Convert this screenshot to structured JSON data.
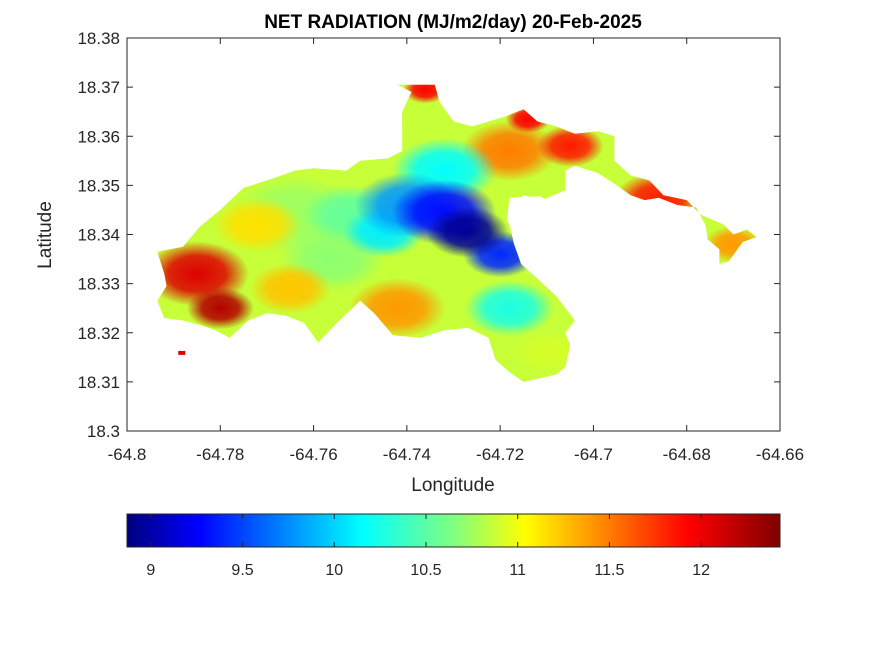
{
  "chart_data": {
    "type": "heatmap",
    "title": "NET RADIATION (MJ/m2/day) 20-Feb-2025",
    "xlabel": "Longitude",
    "ylabel": "Latitude",
    "xlim": [
      -64.8,
      -64.66
    ],
    "ylim": [
      18.3,
      18.38
    ],
    "x_ticks": [
      "-64.8",
      "-64.78",
      "-64.76",
      "-64.74",
      "-64.72",
      "-64.7",
      "-64.68",
      "-64.66"
    ],
    "y_ticks": [
      "18.3",
      "18.31",
      "18.32",
      "18.33",
      "18.34",
      "18.35",
      "18.36",
      "18.37",
      "18.38"
    ],
    "colorbar": {
      "colormap": "jet",
      "range": [
        8.87,
        12.43
      ],
      "ticks": [
        "9",
        "9.5",
        "10",
        "10.5",
        "11",
        "11.5",
        "12"
      ]
    },
    "island_outline": [
      [
        -64.7935,
        18.3365
      ],
      [
        -64.788,
        18.3375
      ],
      [
        -64.7845,
        18.3415
      ],
      [
        -64.78,
        18.345
      ],
      [
        -64.775,
        18.3495
      ],
      [
        -64.77,
        18.351
      ],
      [
        -64.764,
        18.353
      ],
      [
        -64.76,
        18.3535
      ],
      [
        -64.753,
        18.353
      ],
      [
        -64.75,
        18.355
      ],
      [
        -64.744,
        18.3555
      ],
      [
        -64.741,
        18.357
      ],
      [
        -64.741,
        18.365
      ],
      [
        -64.739,
        18.369
      ],
      [
        -64.742,
        18.3705
      ],
      [
        -64.734,
        18.3705
      ],
      [
        -64.733,
        18.367
      ],
      [
        -64.73,
        18.363
      ],
      [
        -64.726,
        18.362
      ],
      [
        -64.719,
        18.364
      ],
      [
        -64.715,
        18.3655
      ],
      [
        -64.712,
        18.363
      ],
      [
        -64.708,
        18.362
      ],
      [
        -64.704,
        18.3605
      ],
      [
        -64.699,
        18.361
      ],
      [
        -64.6955,
        18.36
      ],
      [
        -64.6955,
        18.355
      ],
      [
        -64.692,
        18.352
      ],
      [
        -64.688,
        18.351
      ],
      [
        -64.685,
        18.348
      ],
      [
        -64.68,
        18.347
      ],
      [
        -64.677,
        18.344
      ],
      [
        -64.672,
        18.342
      ],
      [
        -64.67,
        18.34
      ],
      [
        -64.667,
        18.341
      ],
      [
        -64.665,
        18.3395
      ],
      [
        -64.668,
        18.3385
      ],
      [
        -64.671,
        18.3345
      ],
      [
        -64.673,
        18.334
      ],
      [
        -64.673,
        18.337
      ],
      [
        -64.6755,
        18.339
      ],
      [
        -64.676,
        18.342
      ],
      [
        -64.678,
        18.3455
      ],
      [
        -64.682,
        18.346
      ],
      [
        -64.686,
        18.3475
      ],
      [
        -64.689,
        18.347
      ],
      [
        -64.692,
        18.348
      ],
      [
        -64.695,
        18.35
      ],
      [
        -64.699,
        18.3525
      ],
      [
        -64.704,
        18.354
      ],
      [
        -64.706,
        18.353
      ],
      [
        -64.706,
        18.349
      ],
      [
        -64.711,
        18.347
      ],
      [
        -64.715,
        18.348
      ],
      [
        -64.717,
        18.346
      ],
      [
        -64.718,
        18.342
      ],
      [
        -64.717,
        18.338
      ],
      [
        -64.7155,
        18.334
      ],
      [
        -64.712,
        18.331
      ],
      [
        -64.708,
        18.3275
      ],
      [
        -64.704,
        18.3225
      ],
      [
        -64.706,
        18.32
      ],
      [
        -64.705,
        18.3175
      ],
      [
        -64.706,
        18.313
      ],
      [
        -64.708,
        18.3115
      ],
      [
        -64.715,
        18.31
      ],
      [
        -64.718,
        18.312
      ],
      [
        -64.721,
        18.3145
      ],
      [
        -64.7225,
        18.319
      ],
      [
        -64.727,
        18.321
      ],
      [
        -64.732,
        18.3205
      ],
      [
        -64.737,
        18.319
      ],
      [
        -64.743,
        18.3195
      ],
      [
        -64.747,
        18.324
      ],
      [
        -64.75,
        18.3265
      ],
      [
        -64.755,
        18.322
      ],
      [
        -64.759,
        18.318
      ],
      [
        -64.762,
        18.322
      ],
      [
        -64.766,
        18.3235
      ],
      [
        -64.77,
        18.324
      ],
      [
        -64.774,
        18.3225
      ],
      [
        -64.778,
        18.319
      ],
      [
        -64.781,
        18.3205
      ],
      [
        -64.784,
        18.3215
      ],
      [
        -64.788,
        18.3225
      ],
      [
        -64.792,
        18.323
      ],
      [
        -64.7935,
        18.3265
      ],
      [
        -64.7915,
        18.3295
      ],
      [
        -64.792,
        18.332
      ],
      [
        -64.7935,
        18.3365
      ]
    ],
    "cutout_outline": [
      [
        -64.718,
        18.3475
      ],
      [
        -64.7115,
        18.3478
      ],
      [
        -64.7085,
        18.3462
      ],
      [
        -64.708,
        18.342
      ],
      [
        -64.71,
        18.338
      ],
      [
        -64.7125,
        18.337
      ],
      [
        -64.7165,
        18.3385
      ],
      [
        -64.7185,
        18.343
      ],
      [
        -64.718,
        18.3475
      ]
    ],
    "islet": [
      [
        -64.789,
        18.3155
      ],
      [
        -64.7875,
        18.3155
      ],
      [
        -64.7875,
        18.3163
      ],
      [
        -64.789,
        18.3163
      ]
    ],
    "values_field": [
      {
        "lon": -64.727,
        "lat": 18.3405,
        "value": 8.95,
        "radius": 0.0055
      },
      {
        "lon": -64.732,
        "lat": 18.3445,
        "value": 9.35,
        "radius": 0.007
      },
      {
        "lon": -64.72,
        "lat": 18.336,
        "value": 9.45,
        "radius": 0.005
      },
      {
        "lon": -64.74,
        "lat": 18.346,
        "value": 9.85,
        "radius": 0.007
      },
      {
        "lon": -64.745,
        "lat": 18.3405,
        "value": 10.15,
        "radius": 0.0055
      },
      {
        "lon": -64.732,
        "lat": 18.353,
        "value": 10.2,
        "radius": 0.007
      },
      {
        "lon": -64.718,
        "lat": 18.325,
        "value": 10.3,
        "radius": 0.006
      },
      {
        "lon": -64.752,
        "lat": 18.344,
        "value": 10.55,
        "radius": 0.0065
      },
      {
        "lon": -64.764,
        "lat": 18.344,
        "value": 10.75,
        "radius": 0.0085
      },
      {
        "lon": -64.756,
        "lat": 18.335,
        "value": 10.7,
        "radius": 0.007
      },
      {
        "lon": -64.736,
        "lat": 18.364,
        "value": 10.9,
        "radius": 0.005
      },
      {
        "lon": -64.71,
        "lat": 18.316,
        "value": 10.95,
        "radius": 0.0045
      },
      {
        "lon": -64.772,
        "lat": 18.342,
        "value": 11.2,
        "radius": 0.006
      },
      {
        "lon": -64.765,
        "lat": 18.329,
        "value": 11.3,
        "radius": 0.0055
      },
      {
        "lon": -64.742,
        "lat": 18.325,
        "value": 11.45,
        "radius": 0.0065
      },
      {
        "lon": -64.718,
        "lat": 18.357,
        "value": 11.55,
        "radius": 0.0065
      },
      {
        "lon": -64.705,
        "lat": 18.358,
        "value": 11.9,
        "radius": 0.0045
      },
      {
        "lon": -64.785,
        "lat": 18.332,
        "value": 12.1,
        "radius": 0.007
      },
      {
        "lon": -64.78,
        "lat": 18.325,
        "value": 12.25,
        "radius": 0.0045
      },
      {
        "lon": -64.736,
        "lat": 18.3695,
        "value": 12.0,
        "radius": 0.003
      },
      {
        "lon": -64.714,
        "lat": 18.3635,
        "value": 12.0,
        "radius": 0.003
      },
      {
        "lon": -64.686,
        "lat": 18.347,
        "value": 11.9,
        "radius": 0.006
      },
      {
        "lon": -64.67,
        "lat": 18.338,
        "value": 11.45,
        "radius": 0.004
      }
    ]
  }
}
